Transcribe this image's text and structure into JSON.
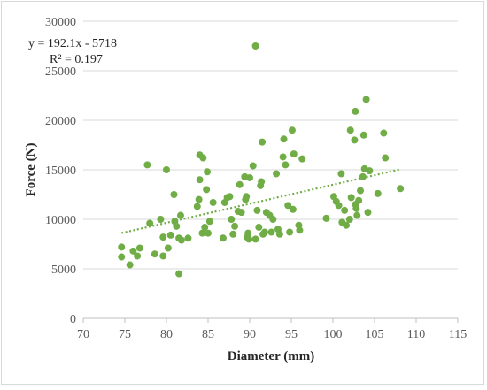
{
  "chart_data": {
    "type": "scatter",
    "xlabel": "Diameter (mm)",
    "ylabel": "Force (N)",
    "xlim": [
      70,
      115
    ],
    "ylim": [
      0,
      30000
    ],
    "xticks": [
      70,
      75,
      80,
      85,
      90,
      95,
      100,
      105,
      110,
      115
    ],
    "yticks": [
      0,
      5000,
      10000,
      15000,
      20000,
      25000,
      30000
    ],
    "grid": "horizontal",
    "marker_color": "#70ad47",
    "trendline": {
      "type": "linear",
      "slope": 192.1,
      "intercept": -5718,
      "equation_text": "y = 192.1x - 5718",
      "r2_text": "R² = 0.197",
      "color": "#70ad47",
      "style": "dotted"
    },
    "points": [
      [
        74.6,
        7200
      ],
      [
        74.6,
        6200
      ],
      [
        75.6,
        5400
      ],
      [
        76.0,
        6800
      ],
      [
        76.5,
        6300
      ],
      [
        76.8,
        7100
      ],
      [
        77.7,
        15500
      ],
      [
        78.0,
        9600
      ],
      [
        78.6,
        6500
      ],
      [
        79.3,
        10000
      ],
      [
        79.6,
        8200
      ],
      [
        79.6,
        6300
      ],
      [
        80.0,
        15000
      ],
      [
        80.2,
        7100
      ],
      [
        80.5,
        8400
      ],
      [
        80.9,
        12500
      ],
      [
        81.0,
        9800
      ],
      [
        81.2,
        9300
      ],
      [
        81.5,
        8100
      ],
      [
        81.5,
        4500
      ],
      [
        81.7,
        10400
      ],
      [
        81.8,
        7900
      ],
      [
        82.6,
        8100
      ],
      [
        83.7,
        11300
      ],
      [
        83.9,
        12000
      ],
      [
        84.0,
        16500
      ],
      [
        84.0,
        14000
      ],
      [
        84.3,
        8600
      ],
      [
        84.4,
        16200
      ],
      [
        84.6,
        9200
      ],
      [
        84.8,
        13000
      ],
      [
        84.9,
        14800
      ],
      [
        85.0,
        8600
      ],
      [
        85.2,
        9800
      ],
      [
        85.6,
        11700
      ],
      [
        86.8,
        8100
      ],
      [
        87.0,
        11700
      ],
      [
        87.3,
        12200
      ],
      [
        87.6,
        12300
      ],
      [
        87.8,
        10000
      ],
      [
        88.0,
        8500
      ],
      [
        88.2,
        9300
      ],
      [
        88.6,
        10800
      ],
      [
        88.8,
        13500
      ],
      [
        89.0,
        10700
      ],
      [
        89.4,
        14300
      ],
      [
        89.5,
        12000
      ],
      [
        89.6,
        12300
      ],
      [
        89.7,
        8200
      ],
      [
        89.8,
        8600
      ],
      [
        89.9,
        8000
      ],
      [
        90.0,
        14200
      ],
      [
        90.4,
        15400
      ],
      [
        90.7,
        8000
      ],
      [
        90.7,
        27500
      ],
      [
        90.9,
        10900
      ],
      [
        91.1,
        9200
      ],
      [
        91.3,
        13400
      ],
      [
        91.4,
        13800
      ],
      [
        91.5,
        17800
      ],
      [
        91.6,
        8500
      ],
      [
        91.8,
        8700
      ],
      [
        92.0,
        10700
      ],
      [
        92.4,
        10400
      ],
      [
        92.6,
        8700
      ],
      [
        92.8,
        10000
      ],
      [
        93.2,
        14600
      ],
      [
        93.4,
        9000
      ],
      [
        93.6,
        8500
      ],
      [
        94.0,
        16300
      ],
      [
        94.1,
        18100
      ],
      [
        94.3,
        15500
      ],
      [
        94.6,
        11400
      ],
      [
        94.8,
        8700
      ],
      [
        95.1,
        19000
      ],
      [
        95.2,
        11000
      ],
      [
        95.3,
        16600
      ],
      [
        95.9,
        9400
      ],
      [
        96.0,
        8900
      ],
      [
        96.3,
        16100
      ],
      [
        99.2,
        10100
      ],
      [
        100.1,
        12300
      ],
      [
        100.4,
        11800
      ],
      [
        100.7,
        11400
      ],
      [
        101.0,
        14600
      ],
      [
        101.1,
        9700
      ],
      [
        101.4,
        10900
      ],
      [
        101.6,
        9400
      ],
      [
        102.0,
        10000
      ],
      [
        102.1,
        19000
      ],
      [
        102.2,
        12200
      ],
      [
        102.6,
        18000
      ],
      [
        102.7,
        20900
      ],
      [
        102.7,
        11500
      ],
      [
        102.8,
        11100
      ],
      [
        102.9,
        10400
      ],
      [
        103.1,
        11900
      ],
      [
        103.3,
        12900
      ],
      [
        103.6,
        14300
      ],
      [
        103.7,
        18500
      ],
      [
        103.8,
        15100
      ],
      [
        104.0,
        22100
      ],
      [
        104.2,
        10700
      ],
      [
        104.4,
        14900
      ],
      [
        105.4,
        12600
      ],
      [
        106.1,
        18700
      ],
      [
        106.3,
        16200
      ],
      [
        108.1,
        13100
      ]
    ]
  }
}
